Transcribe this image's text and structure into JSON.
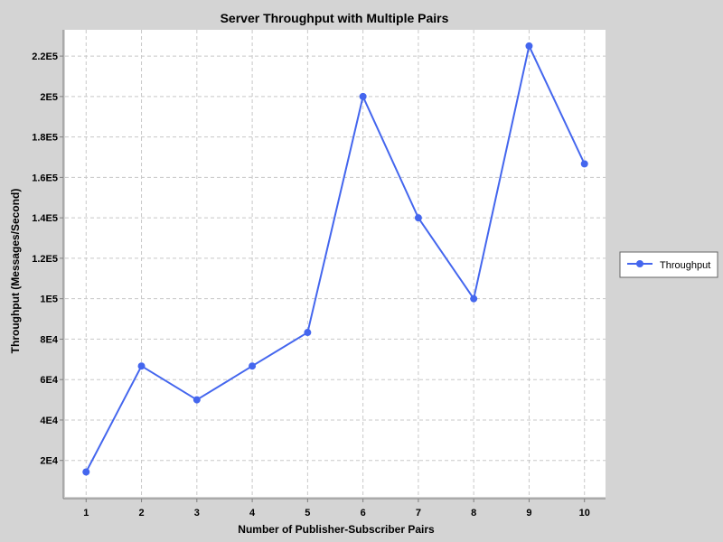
{
  "chart_data": {
    "type": "line",
    "title": "Server Throughput with Multiple Pairs",
    "xlabel": "Number of Publisher-Subscriber Pairs",
    "ylabel": "Throughput (Messages/Second)",
    "x": [
      1,
      2,
      3,
      4,
      5,
      6,
      7,
      8,
      9,
      10
    ],
    "x_tick_labels": [
      "1",
      "2",
      "3",
      "4",
      "5",
      "6",
      "7",
      "8",
      "9",
      "10"
    ],
    "xlim": [
      0.62,
      10.38
    ],
    "y_ticks": [
      20000,
      40000,
      60000,
      80000,
      100000,
      120000,
      140000,
      160000,
      180000,
      200000,
      220000
    ],
    "y_tick_labels": [
      "2E4",
      "4E4",
      "6E4",
      "8E4",
      "1E5",
      "1.2E5",
      "1.4E5",
      "1.6E5",
      "1.8E5",
      "2E5",
      "2.2E5"
    ],
    "ylim": [
      2000,
      233000
    ],
    "grid": true,
    "legend_position": "right",
    "series": [
      {
        "name": "Throughput",
        "color": "#4466ee",
        "values": [
          14300,
          66700,
          50000,
          66700,
          83300,
          200000,
          140000,
          100000,
          225000,
          166700
        ]
      }
    ]
  }
}
